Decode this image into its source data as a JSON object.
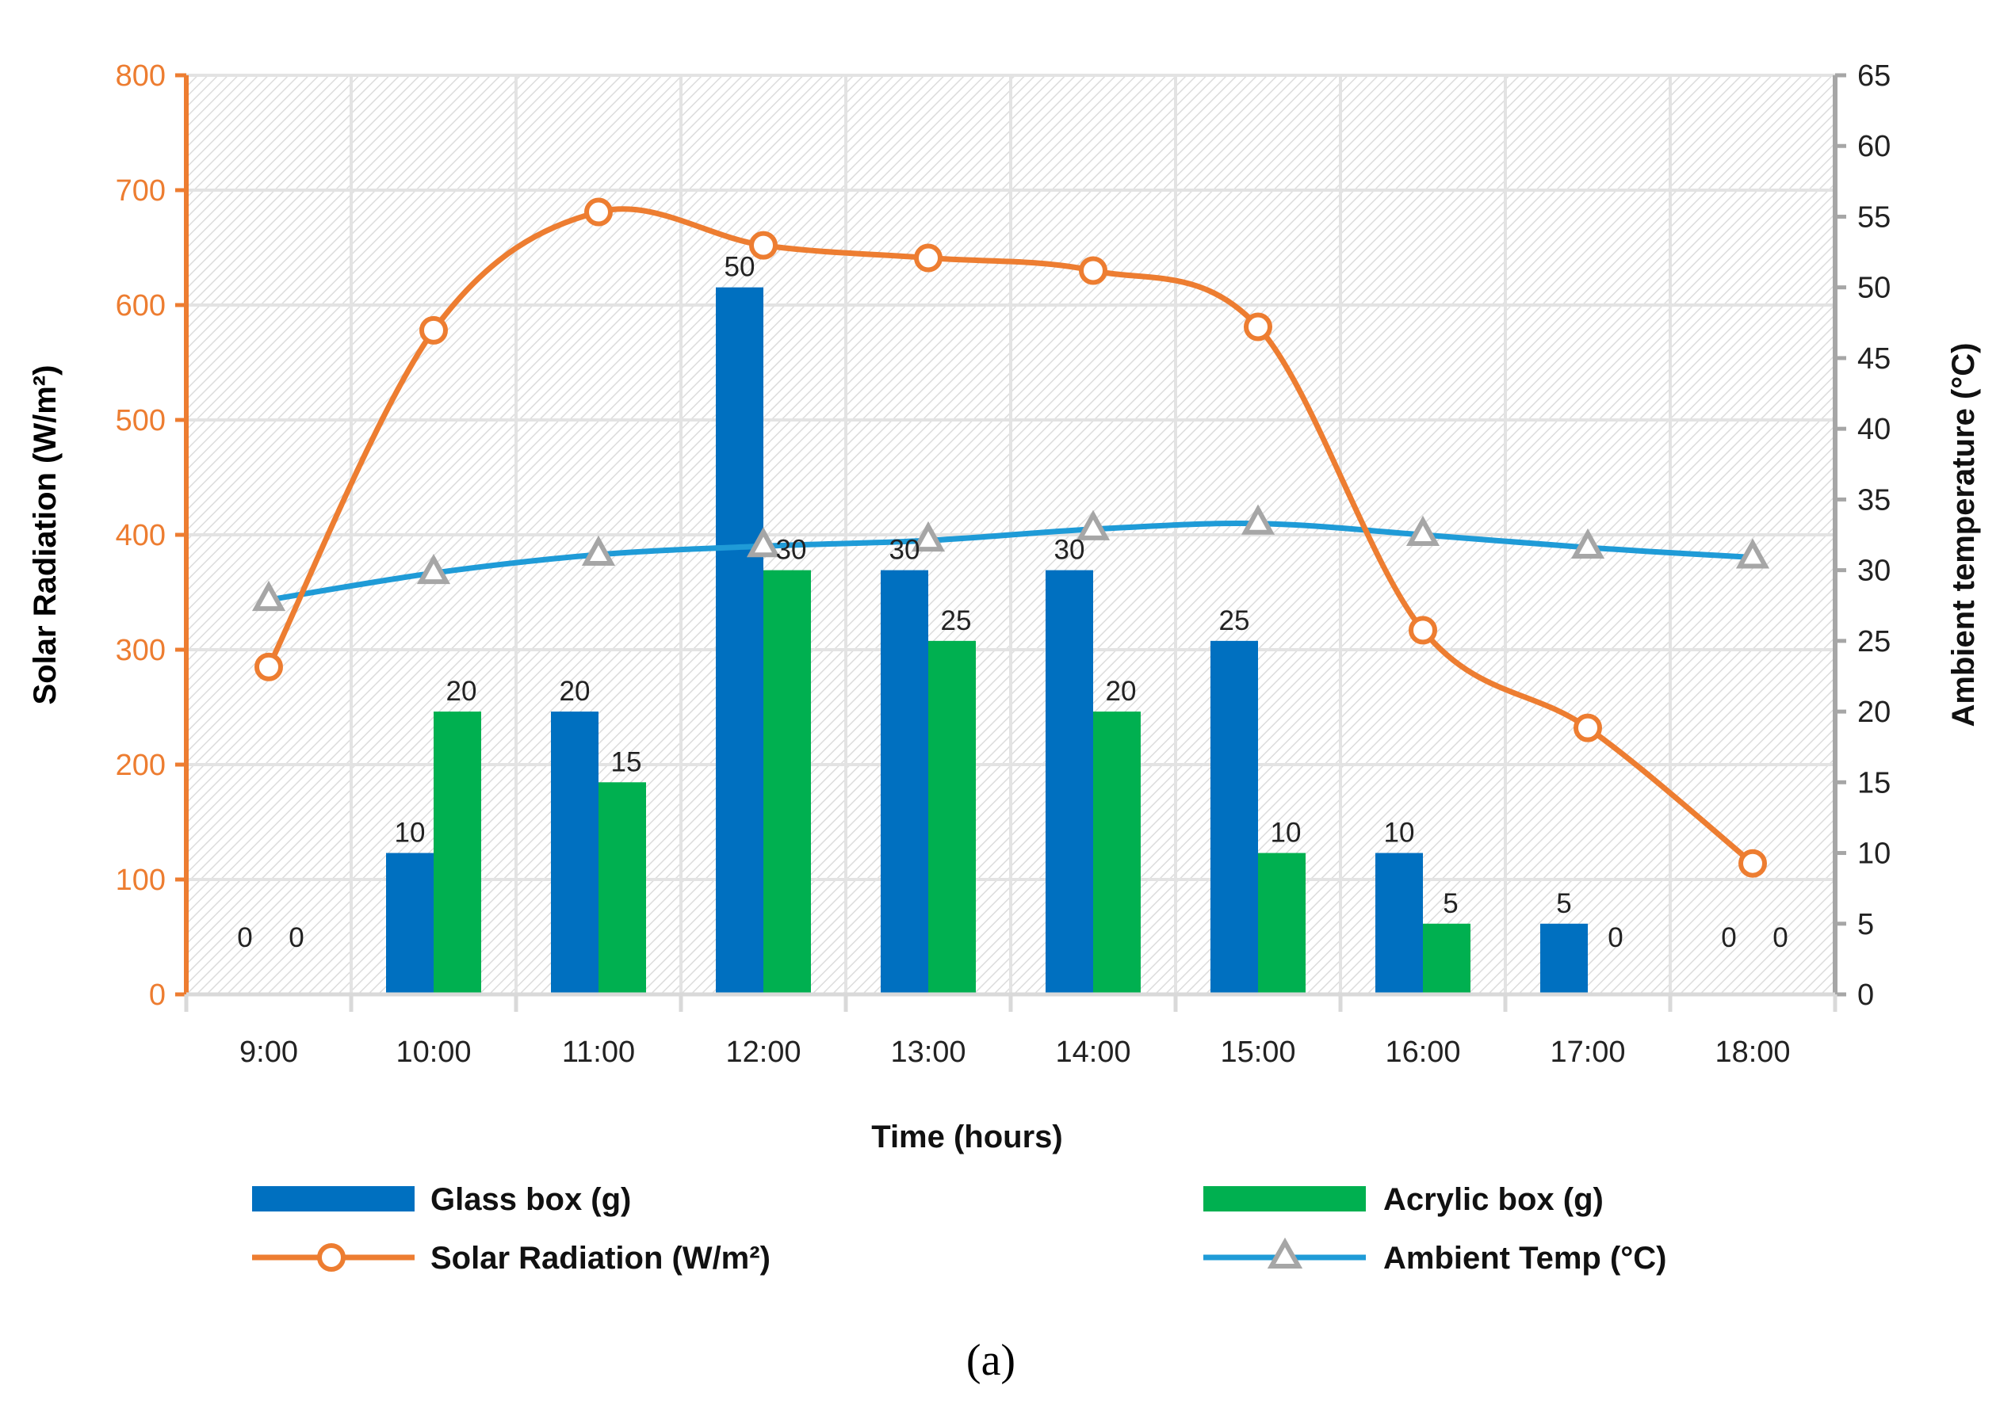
{
  "chart_data": {
    "type": "bar",
    "categories": [
      "9:00",
      "10:00",
      "11:00",
      "12:00",
      "13:00",
      "14:00",
      "15:00",
      "16:00",
      "17:00",
      "18:00"
    ],
    "series": [
      {
        "name": "Glass box (g)",
        "kind": "bar",
        "axis": "right",
        "color": "#0070C0",
        "values": [
          0,
          10,
          20,
          50,
          30,
          30,
          25,
          10,
          5,
          0
        ]
      },
      {
        "name": "Acrylic box (g)",
        "kind": "bar",
        "axis": "right",
        "color": "#00B050",
        "values": [
          0,
          20,
          15,
          30,
          25,
          20,
          10,
          5,
          0,
          0
        ]
      },
      {
        "name": "Solar Radiation (W/m²)",
        "kind": "line",
        "axis": "left",
        "color": "#ED7D31",
        "marker": "circle",
        "values": [
          285,
          578,
          681,
          652,
          641,
          630,
          581,
          317,
          232,
          114
        ]
      },
      {
        "name": "Ambient Temp (°C)",
        "kind": "line",
        "axis": "right",
        "color": "#1F9BD7",
        "marker": "triangle",
        "values": [
          27.9,
          29.8,
          31.1,
          31.7,
          32.1,
          32.9,
          33.3,
          32.5,
          31.6,
          30.9
        ]
      }
    ],
    "xlabel": "Time (hours)",
    "ylabel_left": "Solar Radiation (W/m²)",
    "ylabel_right": "Ambient temperature (°C)",
    "ylim_left": [
      0,
      800
    ],
    "ylim_right": [
      0,
      65
    ],
    "yticks_left": [
      0,
      100,
      200,
      300,
      400,
      500,
      600,
      700,
      800
    ],
    "yticks_right": [
      0,
      5,
      10,
      15,
      20,
      25,
      30,
      35,
      40,
      45,
      50,
      55,
      60,
      65
    ],
    "grid": true,
    "legend_position": "bottom",
    "colors": {
      "left_axis": "#ED7D31",
      "left_title": "#FF0000",
      "right_axis": "#A6A6A6"
    }
  },
  "caption": "(a)"
}
